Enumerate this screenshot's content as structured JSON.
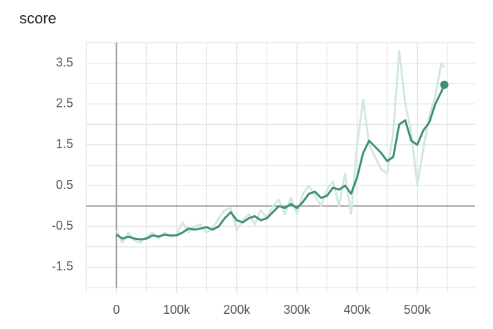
{
  "chart_data": {
    "type": "line",
    "title": "score",
    "x": [
      0,
      10000,
      20000,
      30000,
      40000,
      50000,
      60000,
      70000,
      80000,
      90000,
      100000,
      110000,
      120000,
      130000,
      140000,
      150000,
      160000,
      170000,
      180000,
      190000,
      200000,
      210000,
      220000,
      230000,
      240000,
      250000,
      260000,
      270000,
      280000,
      290000,
      300000,
      310000,
      320000,
      330000,
      340000,
      350000,
      360000,
      370000,
      380000,
      390000,
      400000,
      410000,
      420000,
      430000,
      440000,
      450000,
      460000,
      470000,
      480000,
      490000,
      500000,
      510000,
      520000,
      530000,
      540000,
      545000
    ],
    "series": [
      {
        "color": "#d3e7e1",
        "values": [
          -0.6,
          -0.9,
          -0.65,
          -0.85,
          -0.9,
          -0.75,
          -0.65,
          -0.8,
          -0.65,
          -0.75,
          -0.7,
          -0.4,
          -0.65,
          -0.5,
          -0.45,
          -0.65,
          -0.55,
          -0.3,
          -0.1,
          -0.05,
          -0.6,
          -0.35,
          -0.2,
          -0.45,
          -0.1,
          -0.3,
          0.0,
          0.15,
          -0.2,
          0.2,
          -0.2,
          0.3,
          0.5,
          0.25,
          0.0,
          0.4,
          0.6,
          0.0,
          0.8,
          -0.2,
          1.5,
          2.6,
          1.5,
          1.2,
          0.9,
          0.8,
          1.8,
          3.8,
          2.5,
          1.8,
          0.5,
          1.4,
          2.2,
          2.7,
          3.5,
          3.4
        ]
      },
      {
        "color": "#3d8f7c",
        "values": [
          -0.7,
          -0.8,
          -0.75,
          -0.8,
          -0.82,
          -0.8,
          -0.72,
          -0.75,
          -0.7,
          -0.72,
          -0.72,
          -0.65,
          -0.55,
          -0.58,
          -0.55,
          -0.52,
          -0.58,
          -0.5,
          -0.3,
          -0.15,
          -0.35,
          -0.4,
          -0.3,
          -0.25,
          -0.35,
          -0.3,
          -0.15,
          0.0,
          -0.05,
          0.05,
          -0.05,
          0.1,
          0.3,
          0.35,
          0.2,
          0.25,
          0.45,
          0.4,
          0.5,
          0.3,
          0.7,
          1.3,
          1.6,
          1.45,
          1.3,
          1.1,
          1.2,
          2.0,
          2.1,
          1.6,
          1.5,
          1.85,
          2.05,
          2.5,
          2.8,
          2.97
        ]
      }
    ],
    "xlim": [
      -50000,
      596000
    ],
    "xticks": [
      0,
      {
        "value": 100000,
        "label": "100k"
      },
      {
        "value": 200000,
        "label": "200k"
      },
      {
        "value": 300000,
        "label": "300k"
      },
      {
        "value": 400000,
        "label": "400k"
      },
      {
        "value": 500000,
        "label": "500k"
      }
    ],
    "ylim": [
      -2,
      4
    ],
    "yticks": [
      -1.5,
      -0.5,
      0.5,
      1.5,
      2.5,
      3.5
    ],
    "grid": true
  }
}
